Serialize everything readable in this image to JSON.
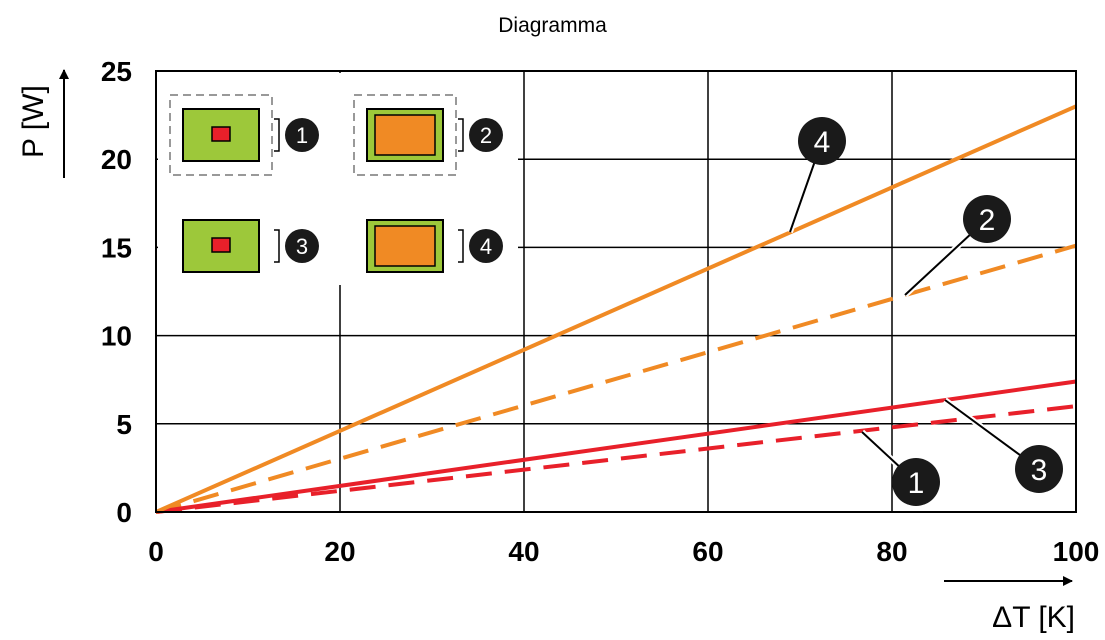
{
  "title": "Diagramma",
  "chart_data": {
    "type": "line",
    "title": "Diagramma",
    "xlabel": "ΔT [K]",
    "ylabel": "P [W]",
    "xlim": [
      0,
      100
    ],
    "ylim": [
      0,
      25
    ],
    "x_ticks": [
      "0",
      "20",
      "40",
      "60",
      "80",
      "100"
    ],
    "y_ticks": [
      "0",
      "5",
      "10",
      "15",
      "20",
      "25"
    ],
    "grid": true,
    "colors": {
      "orange": "#F08A24",
      "red": "#E8202A",
      "green": "#9DC83A",
      "key_badge": "#1a1a1a"
    },
    "series": [
      {
        "marker": "1",
        "x": [
          0,
          100
        ],
        "y": [
          0,
          6.0
        ],
        "color": "#E8202A",
        "style": "dashed"
      },
      {
        "marker": "2",
        "x": [
          0,
          100
        ],
        "y": [
          0,
          15.1
        ],
        "color": "#F08A24",
        "style": "dashed"
      },
      {
        "marker": "3",
        "x": [
          0,
          100
        ],
        "y": [
          0,
          7.4
        ],
        "color": "#E8202A",
        "style": "solid"
      },
      {
        "marker": "4",
        "x": [
          0,
          100
        ],
        "y": [
          0,
          23.0
        ],
        "color": "#F08A24",
        "style": "solid"
      }
    ],
    "annotations": [
      "1",
      "2",
      "3",
      "4"
    ],
    "legend_keys": [
      {
        "marker": "1",
        "component": "small",
        "dashed_outline": true
      },
      {
        "marker": "2",
        "component": "large",
        "dashed_outline": true
      },
      {
        "marker": "3",
        "component": "small",
        "dashed_outline": false
      },
      {
        "marker": "4",
        "component": "large",
        "dashed_outline": false
      }
    ]
  }
}
